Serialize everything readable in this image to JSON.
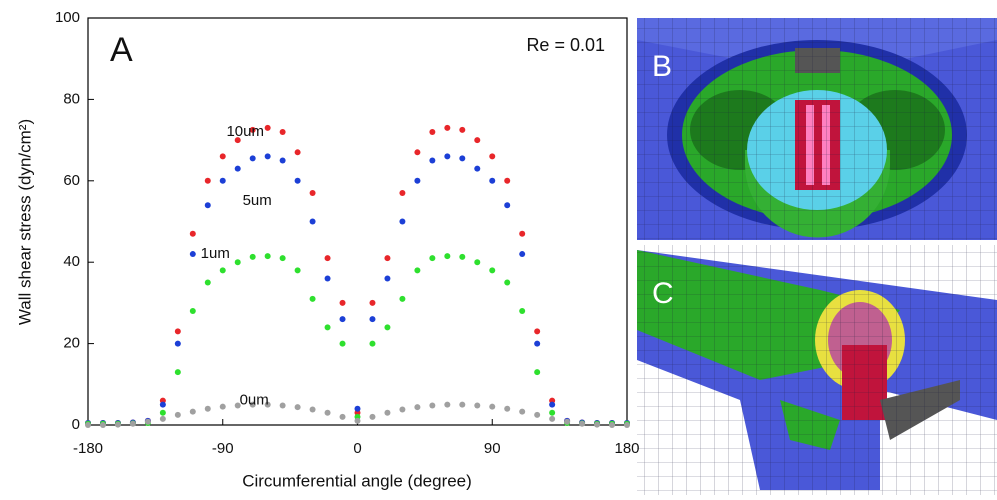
{
  "chart_data": {
    "type": "scatter",
    "panel_label": "A",
    "note": "Re = 0.01",
    "x_label": "Circumferential angle (degree)",
    "y_label": "Wall shear stress (dyn/cm²)",
    "x": [
      -180,
      -170,
      -160,
      -150,
      -140,
      -130,
      -120,
      -110,
      -100,
      -90,
      -80,
      -70,
      -60,
      -50,
      -40,
      -30,
      -20,
      -10,
      0,
      10,
      20,
      30,
      40,
      50,
      60,
      70,
      80,
      90,
      100,
      110,
      120,
      130,
      140,
      150,
      160,
      170,
      180
    ],
    "series": [
      {
        "name": "10um",
        "color": "#e8262a",
        "values": [
          0.5,
          0.5,
          0.5,
          0.6,
          1,
          6,
          23,
          47,
          60,
          66,
          70,
          72.5,
          73,
          72,
          67,
          57,
          41,
          30,
          3,
          30,
          41,
          57,
          67,
          72,
          73,
          72.5,
          70,
          66,
          60,
          47,
          23,
          6,
          1,
          0.6,
          0.5,
          0.5,
          0.5
        ]
      },
      {
        "name": "5um",
        "color": "#1c3fd6",
        "values": [
          0.5,
          0.5,
          0.5,
          0.6,
          1,
          5,
          20,
          42,
          54,
          60,
          63,
          65.5,
          66,
          65,
          60,
          50,
          36,
          26,
          4,
          26,
          36,
          50,
          60,
          65,
          66,
          65.5,
          63,
          60,
          54,
          42,
          20,
          5,
          1,
          0.6,
          0.5,
          0.5,
          0.5
        ]
      },
      {
        "name": "1um",
        "color": "#2ee02e",
        "values": [
          0.3,
          0.3,
          0.3,
          0.4,
          0.5,
          3,
          13,
          28,
          35,
          38,
          40,
          41.3,
          41.5,
          41,
          38,
          31,
          24,
          20,
          2,
          20,
          24,
          31,
          38,
          41,
          41.5,
          41.3,
          40,
          38,
          35,
          28,
          13,
          3,
          0.5,
          0.4,
          0.3,
          0.3,
          0.3
        ]
      },
      {
        "name": "0um",
        "color": "#a0a0a0",
        "values": [
          0,
          0,
          0.1,
          0.3,
          0.8,
          1.5,
          2.5,
          3.3,
          4,
          4.5,
          4.8,
          5,
          5,
          4.8,
          4.4,
          3.8,
          3,
          2,
          1,
          2,
          3,
          3.8,
          4.4,
          4.8,
          5,
          5,
          4.8,
          4.5,
          4,
          3.3,
          2.5,
          1.5,
          0.8,
          0.3,
          0.1,
          0,
          0
        ]
      }
    ],
    "xlim": [
      -180,
      180
    ],
    "ylim": [
      0,
      100
    ],
    "xticks": [
      -180,
      -90,
      0,
      90,
      180
    ],
    "yticks": [
      0,
      20,
      40,
      60,
      80,
      100
    ]
  },
  "images": [
    {
      "label": "B"
    },
    {
      "label": "C"
    }
  ]
}
